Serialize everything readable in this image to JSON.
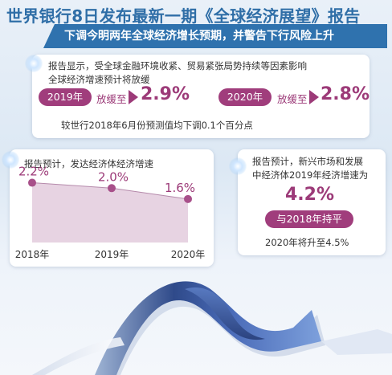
{
  "header": {
    "title": "世界银行8日发布最新一期《全球经济展望》报告",
    "subtitle": "下调今明两年全球经济增长预期，并警告下行风险上升"
  },
  "global_card": {
    "line1": "报告显示，受全球金融环境收紧、贸易紧张局势持续等因素影响",
    "line2": "全球经济增速预计将放缓",
    "year1": "2019年",
    "slow_text1": "放缓至",
    "value1": "2.9%",
    "year2": "2020年",
    "slow_text2": "放缓至",
    "value2": "2.8%",
    "note": "较世行2018年6月份预测值均下调0.1个百分点"
  },
  "developed_card": {
    "title": "报告预计，发达经济体经济增速"
  },
  "emerging_card": {
    "line1": "报告预计，新兴市场和发展",
    "line2": "中经济体2019年经济增速为",
    "value": "4.2%",
    "badge": "与2018年持平",
    "footer": "2020年将升至4.5%"
  },
  "colors": {
    "brand_blue": "#2f72ae",
    "accent_magenta": "#9c3a78",
    "area_fill": "#e7d3e2"
  },
  "chart_data": {
    "type": "area",
    "title": "报告预计，发达经济体经济增速",
    "categories": [
      "2018年",
      "2019年",
      "2020年"
    ],
    "values": [
      2.2,
      2.0,
      1.6
    ],
    "value_labels": [
      "2.2%",
      "2.0%",
      "1.6%"
    ],
    "ylim": [
      0,
      2.6
    ],
    "grid": false,
    "legend": "none"
  }
}
